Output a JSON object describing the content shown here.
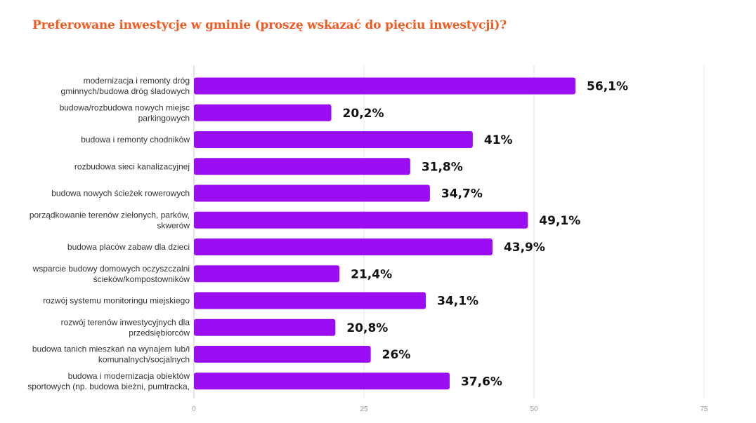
{
  "chart_data": {
    "type": "bar",
    "orientation": "horizontal",
    "title": "Preferowane inwestycje w gminie (proszę wskazać do pięciu inwestycji)?",
    "categories": [
      [
        "modernizacja i remonty dróg",
        "gminnych/budowa dróg śladowych"
      ],
      [
        "budowa/rozbudowa nowych miejsc",
        "parkingowych"
      ],
      [
        "budowa i remonty chodników"
      ],
      [
        "rozbudowa sieci kanalizacyjnej"
      ],
      [
        "budowa nowych ścieżek rowerowych"
      ],
      [
        "porządkowanie terenów zielonych, parków,",
        "skwerów"
      ],
      [
        "budowa placów zabaw dla dzieci"
      ],
      [
        "wsparcie budowy domowych oczyszczalni",
        "ścieków/kompostowników"
      ],
      [
        "rozwój systemu monitoringu miejskiego"
      ],
      [
        "rozwój terenów inwestycyjnych dla",
        "przedsiębiorców"
      ],
      [
        "budowa tanich mieszkań na wynajem lub/i",
        "komunalnych/socjalnych"
      ],
      [
        "budowa i modernizacja obiektów",
        "sportowych (np. budowa bieżni, pumtracka,"
      ]
    ],
    "values": [
      56.1,
      20.2,
      41,
      31.8,
      34.7,
      49.1,
      43.9,
      21.4,
      34.1,
      20.8,
      26,
      37.6
    ],
    "labels": [
      "56,1%",
      "20,2%",
      "41%",
      "31,8%",
      "34,7%",
      "49,1%",
      "43,9%",
      "21,4%",
      "34,1%",
      "20,8%",
      "26%",
      "37,6%"
    ],
    "xlim": [
      0,
      75
    ],
    "xticks": [
      0,
      25,
      50,
      75
    ],
    "grid": true,
    "bar_color": "#9b0df2",
    "title_color": "#f25a22"
  }
}
